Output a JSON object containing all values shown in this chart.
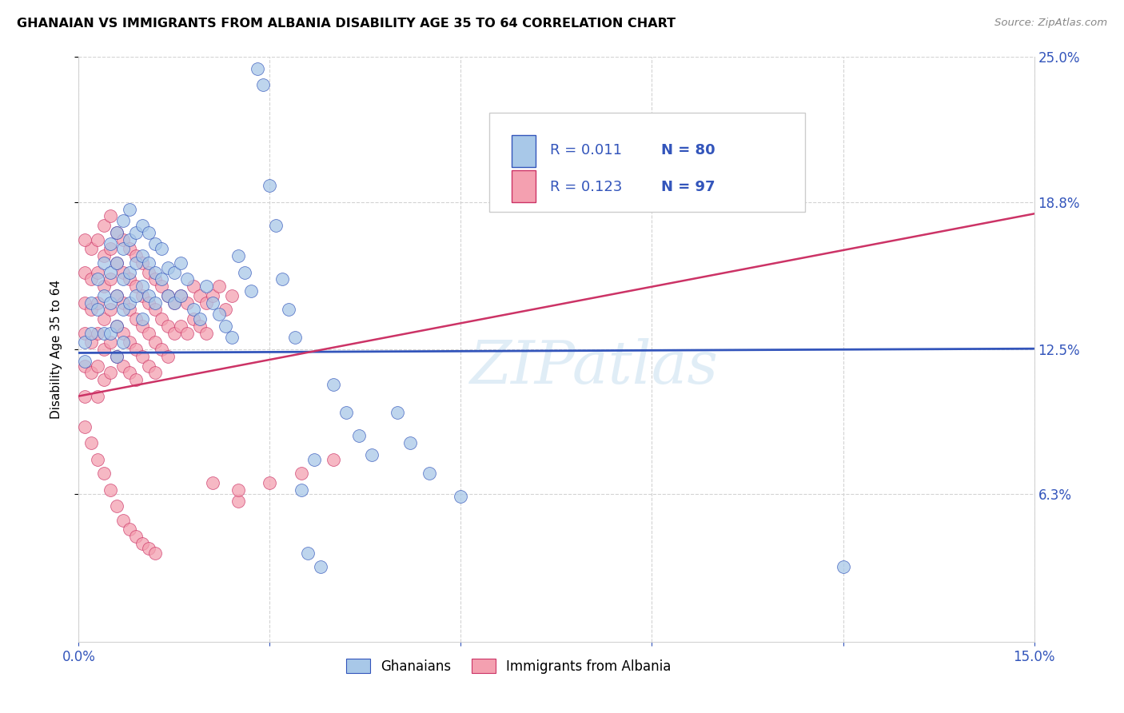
{
  "title": "GHANAIAN VS IMMIGRANTS FROM ALBANIA DISABILITY AGE 35 TO 64 CORRELATION CHART",
  "source": "Source: ZipAtlas.com",
  "ylabel_label": "Disability Age 35 to 64",
  "legend_labels": [
    "Ghanaians",
    "Immigrants from Albania"
  ],
  "blue_color": "#a8c8e8",
  "pink_color": "#f4a0b0",
  "trend_blue": "#3355bb",
  "trend_pink": "#cc3366",
  "xmin": 0.0,
  "xmax": 0.15,
  "ymin": 0.0,
  "ymax": 0.25,
  "ytick_vals": [
    0.063,
    0.125,
    0.188,
    0.25
  ],
  "ytick_labels": [
    "6.3%",
    "12.5%",
    "18.8%",
    "25.0%"
  ],
  "blue_trend_intercept": 0.1235,
  "blue_trend_slope": 0.012,
  "pink_trend_intercept": 0.105,
  "pink_trend_slope": 0.52,
  "blue_scatter": [
    [
      0.001,
      0.128
    ],
    [
      0.001,
      0.12
    ],
    [
      0.002,
      0.145
    ],
    [
      0.002,
      0.132
    ],
    [
      0.003,
      0.155
    ],
    [
      0.003,
      0.142
    ],
    [
      0.004,
      0.162
    ],
    [
      0.004,
      0.148
    ],
    [
      0.004,
      0.132
    ],
    [
      0.005,
      0.17
    ],
    [
      0.005,
      0.158
    ],
    [
      0.005,
      0.145
    ],
    [
      0.005,
      0.132
    ],
    [
      0.006,
      0.175
    ],
    [
      0.006,
      0.162
    ],
    [
      0.006,
      0.148
    ],
    [
      0.006,
      0.135
    ],
    [
      0.006,
      0.122
    ],
    [
      0.007,
      0.18
    ],
    [
      0.007,
      0.168
    ],
    [
      0.007,
      0.155
    ],
    [
      0.007,
      0.142
    ],
    [
      0.007,
      0.128
    ],
    [
      0.008,
      0.185
    ],
    [
      0.008,
      0.172
    ],
    [
      0.008,
      0.158
    ],
    [
      0.008,
      0.145
    ],
    [
      0.009,
      0.175
    ],
    [
      0.009,
      0.162
    ],
    [
      0.009,
      0.148
    ],
    [
      0.01,
      0.178
    ],
    [
      0.01,
      0.165
    ],
    [
      0.01,
      0.152
    ],
    [
      0.01,
      0.138
    ],
    [
      0.011,
      0.175
    ],
    [
      0.011,
      0.162
    ],
    [
      0.011,
      0.148
    ],
    [
      0.012,
      0.17
    ],
    [
      0.012,
      0.158
    ],
    [
      0.012,
      0.145
    ],
    [
      0.013,
      0.168
    ],
    [
      0.013,
      0.155
    ],
    [
      0.014,
      0.16
    ],
    [
      0.014,
      0.148
    ],
    [
      0.015,
      0.158
    ],
    [
      0.015,
      0.145
    ],
    [
      0.016,
      0.162
    ],
    [
      0.016,
      0.148
    ],
    [
      0.017,
      0.155
    ],
    [
      0.018,
      0.142
    ],
    [
      0.019,
      0.138
    ],
    [
      0.02,
      0.152
    ],
    [
      0.021,
      0.145
    ],
    [
      0.022,
      0.14
    ],
    [
      0.023,
      0.135
    ],
    [
      0.024,
      0.13
    ],
    [
      0.025,
      0.165
    ],
    [
      0.026,
      0.158
    ],
    [
      0.027,
      0.15
    ],
    [
      0.028,
      0.245
    ],
    [
      0.029,
      0.238
    ],
    [
      0.03,
      0.195
    ],
    [
      0.031,
      0.178
    ],
    [
      0.032,
      0.155
    ],
    [
      0.033,
      0.142
    ],
    [
      0.034,
      0.13
    ],
    [
      0.035,
      0.065
    ],
    [
      0.036,
      0.038
    ],
    [
      0.037,
      0.078
    ],
    [
      0.038,
      0.032
    ],
    [
      0.04,
      0.11
    ],
    [
      0.042,
      0.098
    ],
    [
      0.044,
      0.088
    ],
    [
      0.046,
      0.08
    ],
    [
      0.05,
      0.098
    ],
    [
      0.052,
      0.085
    ],
    [
      0.055,
      0.072
    ],
    [
      0.06,
      0.062
    ],
    [
      0.08,
      0.215
    ],
    [
      0.12,
      0.032
    ]
  ],
  "pink_scatter": [
    [
      0.001,
      0.158
    ],
    [
      0.001,
      0.145
    ],
    [
      0.001,
      0.132
    ],
    [
      0.001,
      0.118
    ],
    [
      0.001,
      0.105
    ],
    [
      0.002,
      0.168
    ],
    [
      0.002,
      0.155
    ],
    [
      0.002,
      0.142
    ],
    [
      0.002,
      0.128
    ],
    [
      0.002,
      0.115
    ],
    [
      0.003,
      0.172
    ],
    [
      0.003,
      0.158
    ],
    [
      0.003,
      0.145
    ],
    [
      0.003,
      0.132
    ],
    [
      0.003,
      0.118
    ],
    [
      0.003,
      0.105
    ],
    [
      0.004,
      0.178
    ],
    [
      0.004,
      0.165
    ],
    [
      0.004,
      0.152
    ],
    [
      0.004,
      0.138
    ],
    [
      0.004,
      0.125
    ],
    [
      0.004,
      0.112
    ],
    [
      0.005,
      0.182
    ],
    [
      0.005,
      0.168
    ],
    [
      0.005,
      0.155
    ],
    [
      0.005,
      0.142
    ],
    [
      0.005,
      0.128
    ],
    [
      0.005,
      0.115
    ],
    [
      0.006,
      0.175
    ],
    [
      0.006,
      0.162
    ],
    [
      0.006,
      0.148
    ],
    [
      0.006,
      0.135
    ],
    [
      0.006,
      0.122
    ],
    [
      0.007,
      0.172
    ],
    [
      0.007,
      0.158
    ],
    [
      0.007,
      0.145
    ],
    [
      0.007,
      0.132
    ],
    [
      0.007,
      0.118
    ],
    [
      0.008,
      0.168
    ],
    [
      0.008,
      0.155
    ],
    [
      0.008,
      0.142
    ],
    [
      0.008,
      0.128
    ],
    [
      0.008,
      0.115
    ],
    [
      0.009,
      0.165
    ],
    [
      0.009,
      0.152
    ],
    [
      0.009,
      0.138
    ],
    [
      0.009,
      0.125
    ],
    [
      0.009,
      0.112
    ],
    [
      0.01,
      0.162
    ],
    [
      0.01,
      0.148
    ],
    [
      0.01,
      0.135
    ],
    [
      0.01,
      0.122
    ],
    [
      0.011,
      0.158
    ],
    [
      0.011,
      0.145
    ],
    [
      0.011,
      0.132
    ],
    [
      0.011,
      0.118
    ],
    [
      0.012,
      0.155
    ],
    [
      0.012,
      0.142
    ],
    [
      0.012,
      0.128
    ],
    [
      0.012,
      0.115
    ],
    [
      0.013,
      0.152
    ],
    [
      0.013,
      0.138
    ],
    [
      0.013,
      0.125
    ],
    [
      0.014,
      0.148
    ],
    [
      0.014,
      0.135
    ],
    [
      0.014,
      0.122
    ],
    [
      0.015,
      0.145
    ],
    [
      0.015,
      0.132
    ],
    [
      0.016,
      0.148
    ],
    [
      0.016,
      0.135
    ],
    [
      0.017,
      0.145
    ],
    [
      0.017,
      0.132
    ],
    [
      0.018,
      0.152
    ],
    [
      0.018,
      0.138
    ],
    [
      0.019,
      0.148
    ],
    [
      0.019,
      0.135
    ],
    [
      0.02,
      0.145
    ],
    [
      0.02,
      0.132
    ],
    [
      0.021,
      0.148
    ],
    [
      0.021,
      0.068
    ],
    [
      0.022,
      0.152
    ],
    [
      0.023,
      0.142
    ],
    [
      0.024,
      0.148
    ],
    [
      0.025,
      0.06
    ],
    [
      0.001,
      0.092
    ],
    [
      0.002,
      0.085
    ],
    [
      0.003,
      0.078
    ],
    [
      0.004,
      0.072
    ],
    [
      0.005,
      0.065
    ],
    [
      0.006,
      0.058
    ],
    [
      0.007,
      0.052
    ],
    [
      0.008,
      0.048
    ],
    [
      0.009,
      0.045
    ],
    [
      0.01,
      0.042
    ],
    [
      0.011,
      0.04
    ],
    [
      0.012,
      0.038
    ],
    [
      0.025,
      0.065
    ],
    [
      0.03,
      0.068
    ],
    [
      0.035,
      0.072
    ],
    [
      0.04,
      0.078
    ],
    [
      0.001,
      0.172
    ]
  ]
}
